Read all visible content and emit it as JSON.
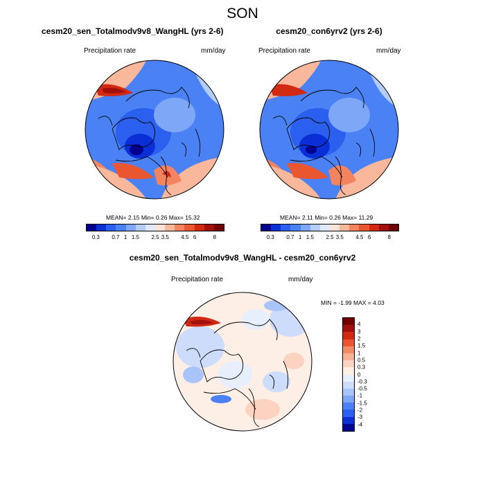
{
  "page": {
    "title": "SON"
  },
  "colors": {
    "abs_scale": [
      "#00008f",
      "#0a2fd6",
      "#2a5ff0",
      "#4a82f5",
      "#7fa7f7",
      "#b3ccf9",
      "#dfe9fb",
      "#fde3d5",
      "#f9b79b",
      "#f4845f",
      "#ea5630",
      "#d22a12",
      "#a1100a",
      "#700000"
    ],
    "diff_scale": [
      "#00008f",
      "#0a2fd6",
      "#2a5ff0",
      "#4a82f5",
      "#7fa7f7",
      "#a9c4f8",
      "#cddcfa",
      "#e8effc",
      "#fdeee6",
      "#fbd3c0",
      "#f7b197",
      "#f28b68",
      "#ea5630",
      "#d22a12",
      "#a1100a",
      "#700000"
    ],
    "land_outline": "#000000"
  },
  "panels": [
    {
      "title": "cesm20_sen_Totalmodv9v8_WangHL (yrs 2-6)",
      "left_label": "Precipitation rate",
      "right_label": "mm/day",
      "stats": {
        "mean_label": "MEAN=",
        "mean": "2.15",
        "min_label": "Min=",
        "min": "0.26",
        "max_label": "Max=",
        "max": "15.32"
      },
      "colorbar_ticks": [
        "0.3",
        "0.7",
        "1",
        "1.5",
        "2.5",
        "3.5",
        "4.5",
        "6",
        "8"
      ]
    },
    {
      "title": "cesm20_con6yrv2 (yrs 2-6)",
      "left_label": "Precipitation rate",
      "right_label": "mm/day",
      "stats": {
        "mean_label": "MEAN=",
        "mean": "2.11",
        "min_label": "Min=",
        "min": "0.26",
        "max_label": "Max=",
        "max": "11.29"
      },
      "colorbar_ticks": [
        "0.3",
        "0.7",
        "1",
        "1.5",
        "2.5",
        "3.5",
        "4.5",
        "6",
        "8"
      ]
    }
  ],
  "diff_panel": {
    "title": "cesm20_sen_Totalmodv9v8_WangHL - cesm20_con6yrv2",
    "left_label": "Precipitation rate",
    "right_label": "mm/day",
    "stats": {
      "min_label": "MIN =",
      "min": "-1.99",
      "max_label": "MAX =",
      "max": "4.03"
    },
    "colorbar_ticks": [
      "4",
      "3",
      "2",
      "1.5",
      "1",
      "0.5",
      "0.3",
      "0",
      "-0.3",
      "-0.5",
      "-1",
      "-1.5",
      "-2",
      "-3",
      "-4"
    ]
  }
}
